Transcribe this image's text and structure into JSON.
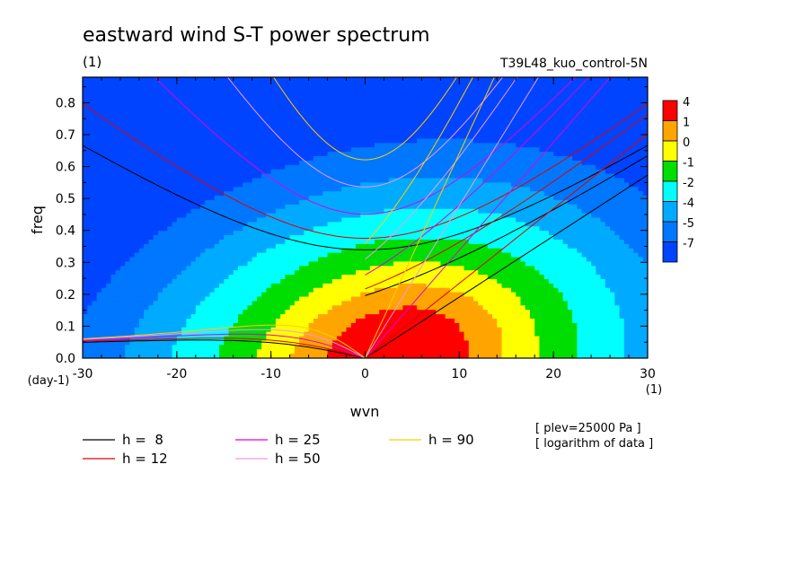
{
  "chart_data": {
    "type": "heatmap",
    "title": "eastward wind S-T power spectrum",
    "subtitle_left": "(1)",
    "subtitle_right": "T39L48_kuo_control-5N",
    "xlabel": "wvn",
    "ylabel": "freq",
    "x_unit": "(1)",
    "y_unit": "(day-1)",
    "xlim": [
      -30,
      30
    ],
    "ylim": [
      0,
      0.88
    ],
    "x_ticks": [
      -30,
      -20,
      -10,
      0,
      10,
      20,
      30
    ],
    "y_ticks": [
      0.0,
      0.1,
      0.2,
      0.3,
      0.4,
      0.5,
      0.6,
      0.7,
      0.8
    ],
    "notes": [
      "[ plev=25000 Pa ]",
      "[ logarithm of data ]"
    ],
    "colorbar": {
      "labels": [
        "4",
        "1",
        "0",
        "-1",
        "-2",
        "-4",
        "-5",
        "-7"
      ],
      "colors": [
        "#ff0000",
        "#ffa500",
        "#ffff00",
        "#00dd00",
        "#00ffff",
        "#00aaff",
        "#0077ff",
        "#0044ff"
      ]
    },
    "contour_levels": [
      {
        "color": "#0044ff",
        "peak": 0.0
      },
      {
        "color": "#0077ff",
        "peak": 0.0
      },
      {
        "color": "#00aaff",
        "peak": 0.0
      },
      {
        "color": "#00ffff",
        "peak": 0.0
      },
      {
        "color": "#00dd00",
        "peak": 0.0
      },
      {
        "color": "#ffff00",
        "peak": 0.0
      },
      {
        "color": "#ffa500",
        "peak": 0.0
      },
      {
        "color": "#ff0000",
        "peak": 0.0
      }
    ],
    "dispersion_legend": [
      {
        "label": "h =  8",
        "color": "#000000",
        "h": 8
      },
      {
        "label": "h = 12",
        "color": "#e00000",
        "h": 12
      },
      {
        "label": "h = 25",
        "color": "#dd00dd",
        "h": 25
      },
      {
        "label": "h = 50",
        "color": "#ee99ee",
        "h": 50
      },
      {
        "label": "h = 90",
        "color": "#ffcc00",
        "h": 90
      }
    ]
  }
}
